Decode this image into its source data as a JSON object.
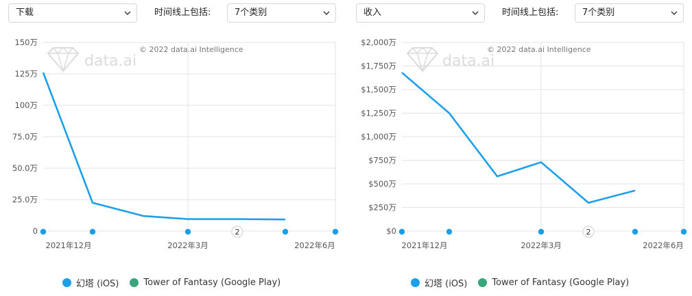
{
  "controls": {
    "left_metric": "下载",
    "left_filter_label": "时间线上包括:",
    "left_filter_value": "7个类别",
    "right_metric": "收入",
    "right_filter_label": "时间线上包括:",
    "right_filter_value": "7个类别"
  },
  "watermark": {
    "brand": "data.ai",
    "copyright": "© 2022 data.ai Intelligence"
  },
  "legend": [
    {
      "name": "幻塔 (iOS)",
      "color": "#1a9fe8"
    },
    {
      "name": "Tower of Fantasy (Google Play)",
      "color": "#3aa57a"
    }
  ],
  "chart_data": [
    {
      "type": "line",
      "metric": "下载",
      "ylim": [
        0,
        1500000
      ],
      "y_ticks": [
        "0",
        "25.0万",
        "50.0万",
        "75.0万",
        "100万",
        "125万",
        "150万"
      ],
      "x_ticks": [
        "2021年12月",
        "2022年3月",
        "2022年6月"
      ],
      "events": [
        "2"
      ],
      "series": [
        {
          "name": "幻塔 (iOS)",
          "color": "#1a9fe8",
          "x": [
            "2021年11月",
            "2021年12月",
            "2022年1月",
            "2022年2月",
            "2022年3月",
            "2022年4月"
          ],
          "values": [
            1260000,
            225000,
            120000,
            95000,
            95000,
            92000
          ]
        }
      ]
    },
    {
      "type": "line",
      "metric": "收入",
      "ylim": [
        0,
        20000000
      ],
      "y_ticks": [
        "$0",
        "$250万",
        "$500万",
        "$750万",
        "$1,000万",
        "$1,250万",
        "$1,500万",
        "$1,750万",
        "$2,000万"
      ],
      "x_ticks": [
        "2021年12月",
        "2022年3月",
        "2022年6月"
      ],
      "events": [
        "2"
      ],
      "series": [
        {
          "name": "幻塔 (iOS)",
          "color": "#1a9fe8",
          "x": [
            "2021年11月",
            "2021年12月",
            "2022年1月",
            "2022年2月",
            "2022年3月",
            "2022年4月"
          ],
          "values": [
            16800000,
            12500000,
            5800000,
            7300000,
            3000000,
            4300000
          ]
        }
      ]
    }
  ]
}
